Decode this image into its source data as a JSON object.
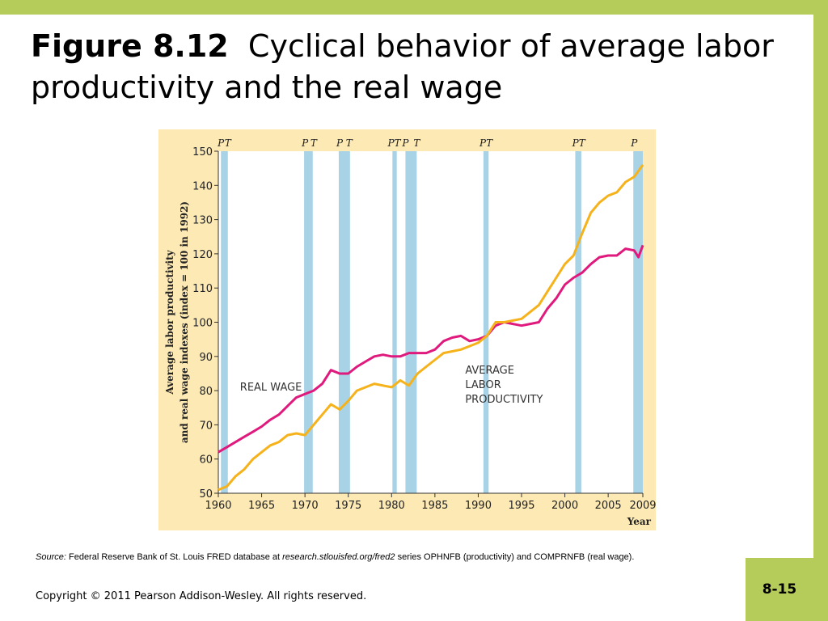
{
  "slide": {
    "title_bold": "Figure 8.12",
    "title_rest": "Cyclical behavior of average labor productivity and the real wage",
    "source_label": "Source:",
    "source_text_1": "Federal Reserve Bank of St. Louis FRED database at",
    "source_url": "research.stlouisfed.org/fred2",
    "source_text_2": "series OPHNFB (productivity) and COMPRNFB (real wage).",
    "copyright": "Copyright © 2011 Pearson Addison-Wesley. All rights reserved.",
    "page_number": "8-15"
  },
  "colors": {
    "accent_bar": "#b6cc5a",
    "chart_bg": "#fde9b4",
    "recession": "#a8d3e6",
    "real_wage": "#e0197d",
    "productivity": "#f5b21b"
  },
  "chart_data": {
    "type": "line",
    "ylabel_line1": "Average labor productivity",
    "ylabel_line2": "and real wage indexes (index = 100 in 1992)",
    "xlabel": "Year",
    "xlim": [
      1960,
      2009
    ],
    "ylim": [
      50,
      150
    ],
    "xticks": [
      1960,
      1965,
      1970,
      1975,
      1980,
      1985,
      1990,
      1995,
      2000,
      2005,
      2009
    ],
    "yticks": [
      50,
      60,
      70,
      80,
      90,
      100,
      110,
      120,
      130,
      140,
      150
    ],
    "recessions": [
      {
        "start": 1960.3,
        "end": 1961.1
      },
      {
        "start": 1969.9,
        "end": 1970.9
      },
      {
        "start": 1973.9,
        "end": 1975.2
      },
      {
        "start": 1980.1,
        "end": 1980.6
      },
      {
        "start": 1981.6,
        "end": 1982.9
      },
      {
        "start": 1990.6,
        "end": 1991.2
      },
      {
        "start": 2001.2,
        "end": 2001.9
      },
      {
        "start": 2007.9,
        "end": 2009.0
      }
    ],
    "turning_points": [
      {
        "label": "P",
        "year": 1960.3
      },
      {
        "label": "T",
        "year": 1961.1
      },
      {
        "label": "P",
        "year": 1970.0
      },
      {
        "label": "T",
        "year": 1971.0
      },
      {
        "label": "P",
        "year": 1974.0
      },
      {
        "label": "T",
        "year": 1975.1
      },
      {
        "label": "PT",
        "year": 1980.3
      },
      {
        "label": "P",
        "year": 1981.6
      },
      {
        "label": "T",
        "year": 1982.9
      },
      {
        "label": "PT",
        "year": 1990.9
      },
      {
        "label": "PT",
        "year": 2001.6
      },
      {
        "label": "P",
        "year": 2008.0
      }
    ],
    "series": [
      {
        "name": "REAL WAGE",
        "label_year": 1962.5,
        "label_value": 80,
        "x": [
          1960,
          1961,
          1962,
          1963,
          1964,
          1965,
          1966,
          1967,
          1968,
          1969,
          1970,
          1971,
          1972,
          1973,
          1974,
          1975,
          1976,
          1977,
          1978,
          1979,
          1980,
          1981,
          1982,
          1983,
          1984,
          1985,
          1986,
          1987,
          1988,
          1989,
          1990,
          1991,
          1992,
          1993,
          1994,
          1995,
          1996,
          1997,
          1998,
          1999,
          2000,
          2001,
          2002,
          2003,
          2004,
          2005,
          2006,
          2007,
          2008,
          2008.5,
          2009
        ],
        "values": [
          62,
          63.5,
          65,
          66.5,
          68,
          69.5,
          71.5,
          73,
          75.5,
          78,
          79,
          80,
          82,
          86,
          85,
          85,
          87,
          88.5,
          90,
          90.5,
          90,
          90,
          91,
          91,
          91,
          92,
          94.5,
          95.5,
          96,
          94.5,
          95,
          96,
          99,
          100,
          99.5,
          99,
          99.5,
          100,
          104,
          107,
          111,
          113,
          114.5,
          117,
          119,
          119.5,
          119.5,
          121.5,
          121,
          119,
          122.5
        ]
      },
      {
        "name": "AVERAGE LABOR PRODUCTIVITY",
        "label_lines": [
          "AVERAGE",
          "LABOR",
          "PRODUCTIVITY"
        ],
        "label_year": 1988.5,
        "label_value": 85,
        "x": [
          1960,
          1961,
          1962,
          1963,
          1964,
          1965,
          1966,
          1967,
          1968,
          1969,
          1970,
          1971,
          1972,
          1973,
          1974,
          1975,
          1976,
          1977,
          1978,
          1979,
          1980,
          1981,
          1982,
          1983,
          1984,
          1985,
          1986,
          1987,
          1988,
          1989,
          1990,
          1991,
          1992,
          1993,
          1994,
          1995,
          1996,
          1997,
          1998,
          1999,
          2000,
          2001,
          2002,
          2003,
          2004,
          2005,
          2006,
          2007,
          2008,
          2009
        ],
        "values": [
          51,
          52,
          55,
          57,
          60,
          62,
          64,
          65,
          67,
          67.5,
          67,
          70,
          73,
          76,
          74.5,
          77,
          80,
          81,
          82,
          81.5,
          81,
          83,
          81.5,
          85,
          87,
          89,
          91,
          91.5,
          92,
          93,
          94,
          96,
          100,
          100,
          100.5,
          101,
          103,
          105,
          109,
          113,
          117,
          119.5,
          126,
          132,
          135,
          137,
          138,
          141,
          142.5,
          146
        ]
      }
    ]
  }
}
